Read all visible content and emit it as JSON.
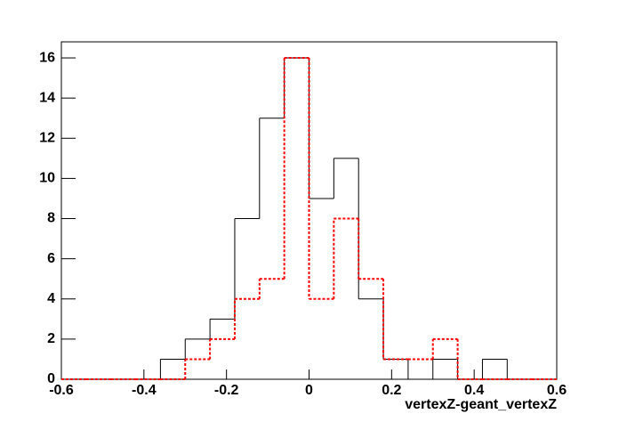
{
  "chart_data": {
    "type": "histogram",
    "x_label": "vertexZ-geant_vertexZ",
    "bins": [
      -0.6,
      -0.54,
      -0.48,
      -0.42,
      -0.36,
      -0.3,
      -0.24,
      -0.18,
      -0.12,
      -0.06,
      0,
      0.06,
      0.12,
      0.18,
      0.24,
      0.3,
      0.36,
      0.42,
      0.48,
      0.54,
      0.6
    ],
    "series": [
      {
        "color": "#000000",
        "dashed": false,
        "values": [
          0,
          0,
          0,
          0,
          1,
          2,
          3,
          8,
          13,
          16,
          9,
          11,
          4,
          1,
          0,
          1,
          0,
          1,
          0,
          0
        ]
      },
      {
        "color": "#ff0000",
        "dashed": true,
        "values": [
          0,
          0,
          0,
          0,
          0,
          1,
          2,
          4,
          5,
          16,
          4,
          8,
          5,
          1,
          1,
          2,
          0,
          0,
          0,
          0
        ]
      }
    ],
    "xlim": [
      -0.6,
      0.6
    ],
    "ylim": [
      0,
      16.8
    ],
    "xticks": [
      -0.6,
      -0.4,
      -0.2,
      0,
      0.2,
      0.4,
      0.6
    ],
    "yticks": [
      0,
      2,
      4,
      6,
      8,
      10,
      12,
      14,
      16
    ]
  }
}
